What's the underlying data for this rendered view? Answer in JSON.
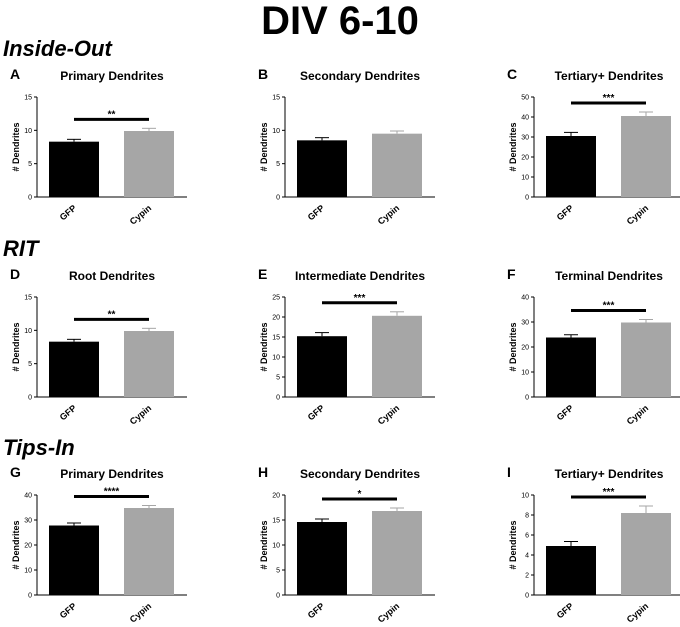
{
  "figure_title": "DIV 6-10",
  "sections": [
    "Inside-Out",
    "RIT",
    "Tips-In"
  ],
  "colors": {
    "gfp": "#000000",
    "cypin": "#a6a6a6",
    "axis": "#000000"
  },
  "chart_data": [
    {
      "letter": "A",
      "section": "Inside-Out",
      "type": "bar",
      "title": "Primary Dendrites",
      "ylabel": "# Dendrites",
      "categories": [
        "GFP",
        "Cypin"
      ],
      "values": [
        8.3,
        9.9
      ],
      "errors": [
        0.35,
        0.4
      ],
      "ylim": [
        0,
        15
      ],
      "yticks": [
        0,
        5,
        10,
        15
      ],
      "significance": "**"
    },
    {
      "letter": "B",
      "section": "Inside-Out",
      "type": "bar",
      "title": "Secondary Dendrites",
      "ylabel": "# Dendrites",
      "categories": [
        "GFP",
        "Cypin"
      ],
      "values": [
        8.5,
        9.5
      ],
      "errors": [
        0.4,
        0.4
      ],
      "ylim": [
        0,
        15
      ],
      "yticks": [
        0,
        5,
        10,
        15
      ],
      "significance": ""
    },
    {
      "letter": "C",
      "section": "Inside-Out",
      "type": "bar",
      "title": "Tertiary+ Dendrites",
      "ylabel": "# Dendrites",
      "categories": [
        "GFP",
        "Cypin"
      ],
      "values": [
        30.5,
        40.5
      ],
      "errors": [
        1.8,
        2.0
      ],
      "ylim": [
        0,
        50
      ],
      "yticks": [
        0,
        10,
        20,
        30,
        40,
        50
      ],
      "significance": "***"
    },
    {
      "letter": "D",
      "section": "RIT",
      "type": "bar",
      "title": "Root Dendrites",
      "ylabel": "# Dendrites",
      "categories": [
        "GFP",
        "Cypin"
      ],
      "values": [
        8.3,
        9.9
      ],
      "errors": [
        0.35,
        0.4
      ],
      "ylim": [
        0,
        15
      ],
      "yticks": [
        0,
        5,
        10,
        15
      ],
      "significance": "**"
    },
    {
      "letter": "E",
      "section": "RIT",
      "type": "bar",
      "title": "Intermediate Dendrites",
      "ylabel": "# Dendrites",
      "categories": [
        "GFP",
        "Cypin"
      ],
      "values": [
        15.2,
        20.3
      ],
      "errors": [
        0.9,
        1.0
      ],
      "ylim": [
        0,
        25
      ],
      "yticks": [
        0,
        5,
        10,
        15,
        20,
        25
      ],
      "significance": "***"
    },
    {
      "letter": "F",
      "section": "RIT",
      "type": "bar",
      "title": "Terminal Dendrites",
      "ylabel": "# Dendrites",
      "categories": [
        "GFP",
        "Cypin"
      ],
      "values": [
        23.8,
        29.8
      ],
      "errors": [
        1.1,
        1.2
      ],
      "ylim": [
        0,
        40
      ],
      "yticks": [
        0,
        10,
        20,
        30,
        40
      ],
      "significance": "***"
    },
    {
      "letter": "G",
      "section": "Tips-In",
      "type": "bar",
      "title": "Primary Dendrites",
      "ylabel": "# Dendrites",
      "categories": [
        "GFP",
        "Cypin"
      ],
      "values": [
        27.8,
        34.8
      ],
      "errors": [
        1.0,
        1.0
      ],
      "ylim": [
        0,
        40
      ],
      "yticks": [
        0,
        10,
        20,
        30,
        40
      ],
      "significance": "****"
    },
    {
      "letter": "H",
      "section": "Tips-In",
      "type": "bar",
      "title": "Secondary Dendrites",
      "ylabel": "# Dendrites",
      "categories": [
        "GFP",
        "Cypin"
      ],
      "values": [
        14.6,
        16.8
      ],
      "errors": [
        0.6,
        0.6
      ],
      "ylim": [
        0,
        20
      ],
      "yticks": [
        0,
        5,
        10,
        15,
        20
      ],
      "significance": "*"
    },
    {
      "letter": "I",
      "section": "Tips-In",
      "type": "bar",
      "title": "Tertiary+ Dendrites",
      "ylabel": "# Dendrites",
      "categories": [
        "GFP",
        "Cypin"
      ],
      "values": [
        4.9,
        8.2
      ],
      "errors": [
        0.45,
        0.7
      ],
      "ylim": [
        0,
        10
      ],
      "yticks": [
        0,
        2,
        4,
        6,
        8,
        10
      ],
      "significance": "***"
    }
  ]
}
